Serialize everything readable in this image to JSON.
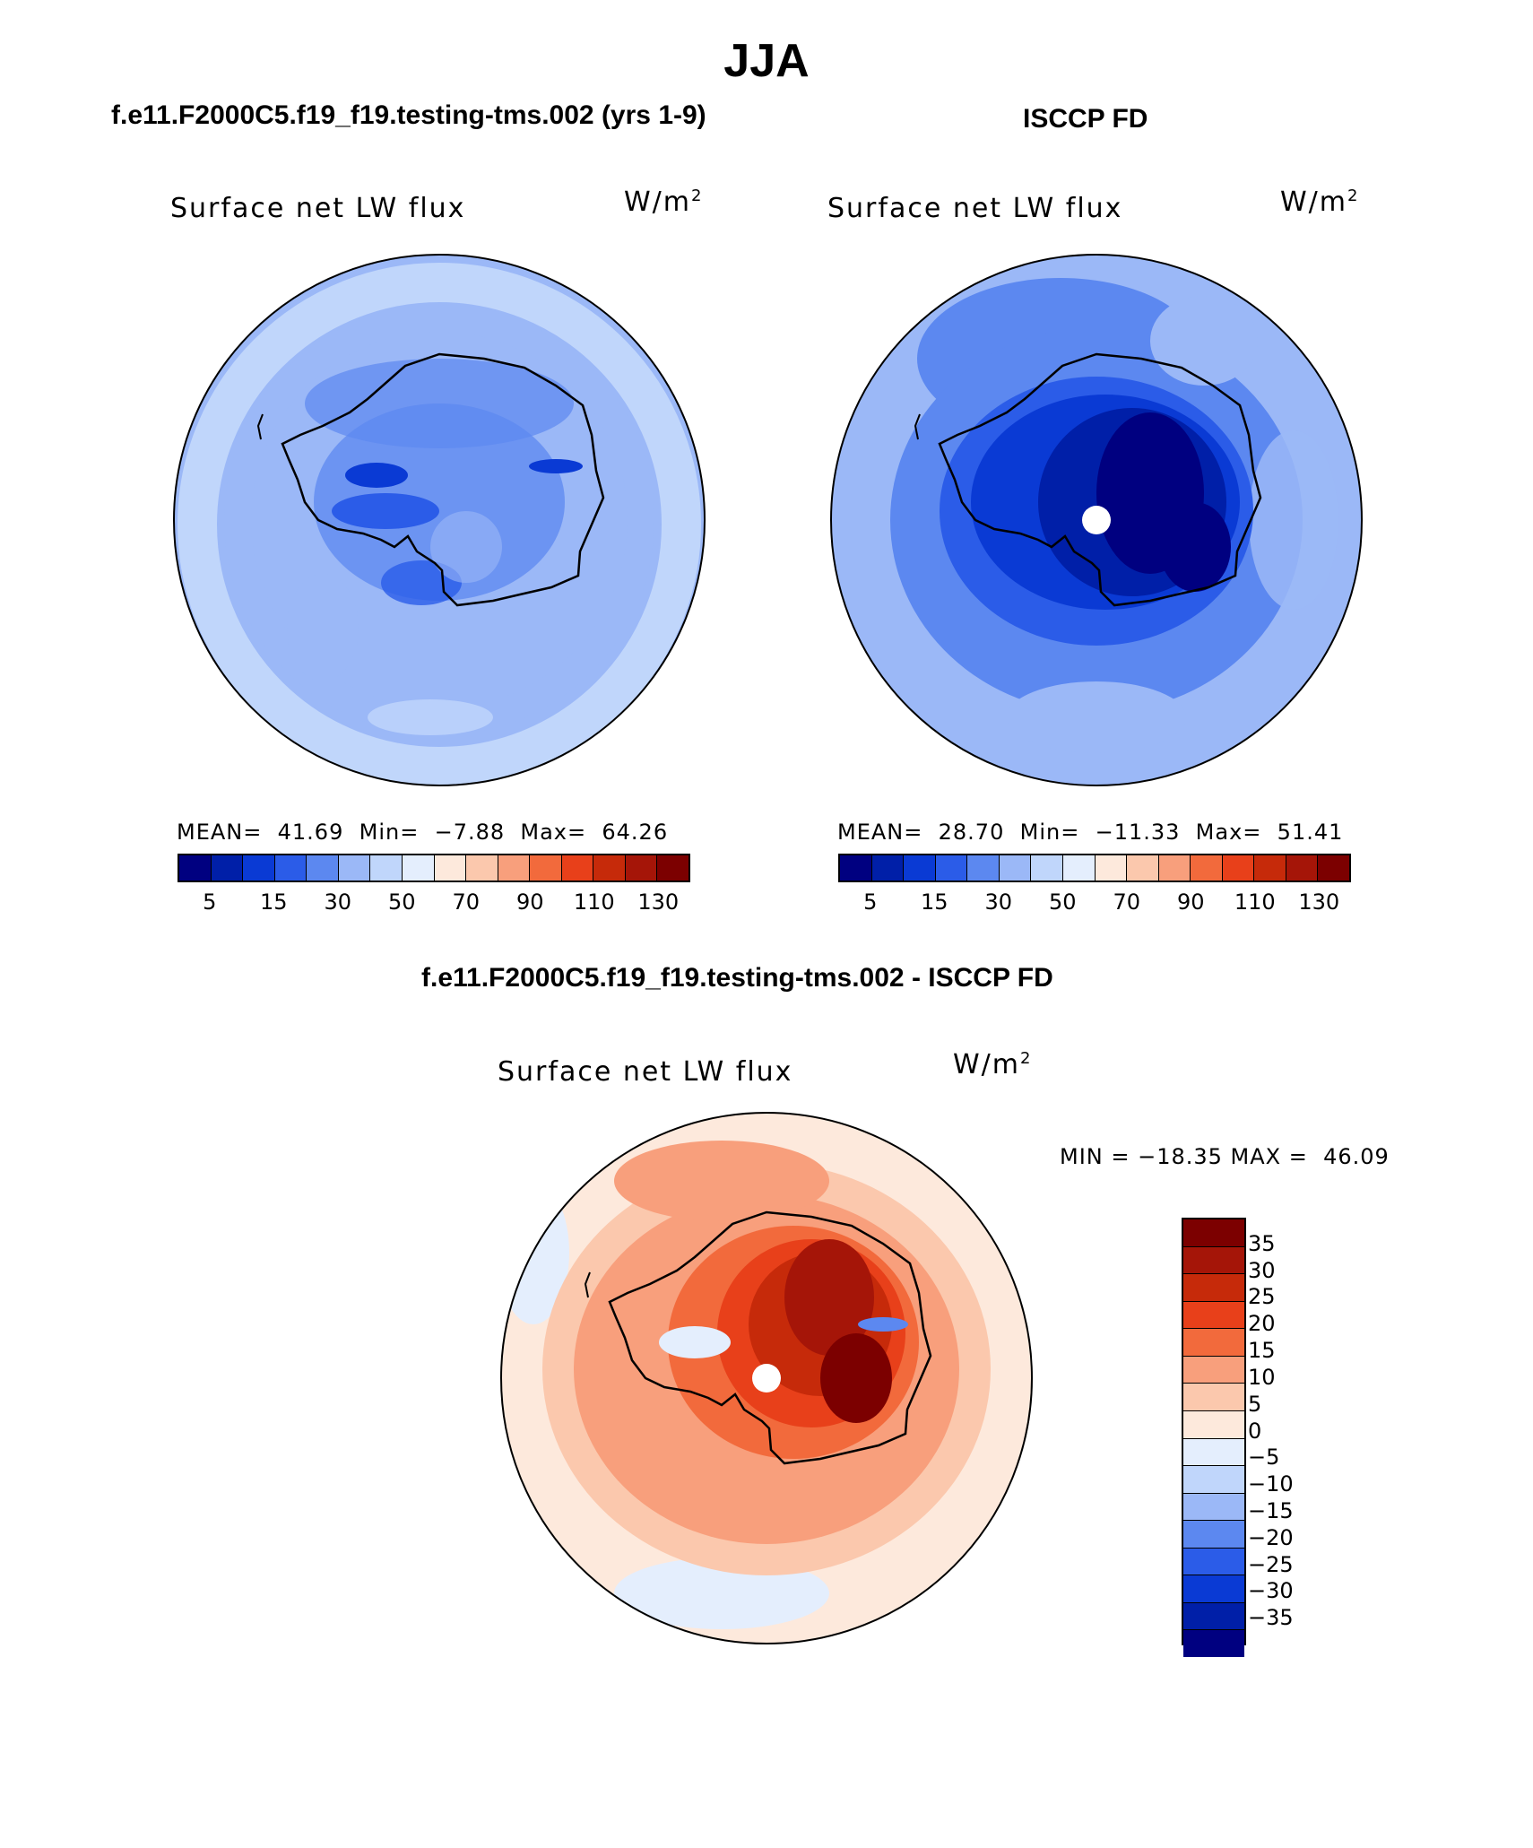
{
  "title": "JJA",
  "panels": [
    {
      "subtitle": "f.e11.F2000C5.f19_f19.testing-tms.002 (yrs 1-9)",
      "plot_label": "Surface net LW flux",
      "units_base": "W/m",
      "units_exp": "2",
      "mean_label": "MEAN=",
      "mean": "41.69",
      "min_label": "Min=",
      "min": "−7.88",
      "max_label": "Max=",
      "max": "64.26"
    },
    {
      "subtitle": "ISCCP FD",
      "plot_label": "Surface net LW flux",
      "units_base": "W/m",
      "units_exp": "2",
      "mean_label": "MEAN=",
      "mean": "28.70",
      "min_label": "Min=",
      "min": "−11.33",
      "max_label": "Max=",
      "max": "51.41"
    },
    {
      "subtitle": "f.e11.F2000C5.f19_f19.testing-tms.002 - ISCCP FD",
      "plot_label": "Surface net LW flux",
      "units_base": "W/m",
      "units_exp": "2",
      "minmax_text": "MIN = −18.35 MAX =  46.09"
    }
  ],
  "colorbar_abs": {
    "colors": [
      "#000080",
      "#001fa8",
      "#0a3ad4",
      "#2b5ce8",
      "#5c88f0",
      "#9bb8f7",
      "#c0d6fb",
      "#e4eefd",
      "#fde9dc",
      "#fbc8ad",
      "#f89f7c",
      "#f26a3c",
      "#e8401a",
      "#c62a0a",
      "#a51508",
      "#7c0000"
    ],
    "ticks": [
      "5",
      "15",
      "30",
      "50",
      "70",
      "90",
      "110",
      "130"
    ]
  },
  "colorbar_diff": {
    "colors": [
      "#7c0000",
      "#a51508",
      "#c62a0a",
      "#e8401a",
      "#f26a3c",
      "#f89f7c",
      "#fbc8ad",
      "#fde9dc",
      "#e4eefd",
      "#c0d6fb",
      "#9bb8f7",
      "#5c88f0",
      "#2b5ce8",
      "#0a3ad4",
      "#001fa8",
      "#000080"
    ],
    "ticks": [
      "35",
      "30",
      "25",
      "20",
      "15",
      "10",
      "5",
      "0",
      "−5",
      "−10",
      "−15",
      "−20",
      "−25",
      "−30",
      "−35"
    ]
  }
}
